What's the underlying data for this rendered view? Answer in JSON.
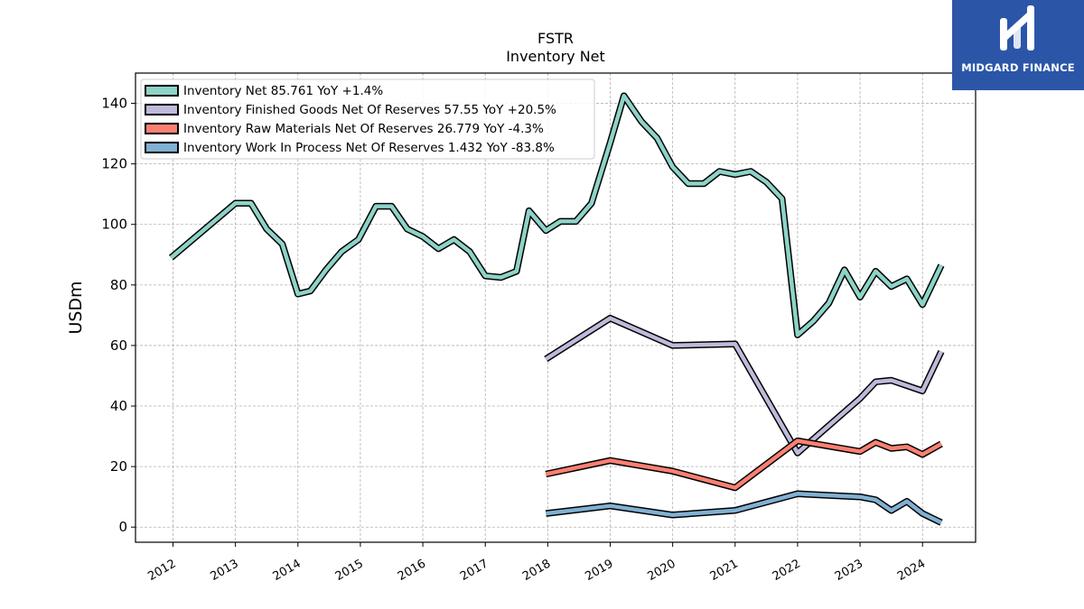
{
  "brand": {
    "name": "MIDGARD FINANCE",
    "bg_color": "#2b56a8"
  },
  "chart_data": {
    "type": "line",
    "title": "FSTR",
    "subtitle": "Inventory Net",
    "xlabel": "",
    "ylabel": "USDm",
    "ylim": [
      -5,
      150
    ],
    "xlim": [
      2011.4,
      2024.85
    ],
    "yticks": [
      0,
      20,
      40,
      60,
      80,
      100,
      120,
      140
    ],
    "xticks": [
      "2012",
      "2013",
      "2014",
      "2015",
      "2016",
      "2017",
      "2018",
      "2019",
      "2020",
      "2021",
      "2022",
      "2023",
      "2024"
    ],
    "grid": true,
    "legend_position": "top-left",
    "series": [
      {
        "name": "Inventory Net",
        "legend": "Inventory Net  85.761 YoY +1.4%",
        "color": "#8dd3c7",
        "x": [
          2011.97,
          2013.0,
          2013.25,
          2013.5,
          2013.75,
          2014.0,
          2014.2,
          2014.45,
          2014.7,
          2014.97,
          2015.25,
          2015.5,
          2015.75,
          2016.0,
          2016.25,
          2016.5,
          2016.75,
          2017.0,
          2017.25,
          2017.5,
          2017.7,
          2017.97,
          2018.2,
          2018.45,
          2018.7,
          2019.0,
          2019.22,
          2019.5,
          2019.75,
          2020.0,
          2020.25,
          2020.5,
          2020.75,
          2021.0,
          2021.25,
          2021.5,
          2021.75,
          2022.0,
          2022.25,
          2022.5,
          2022.75,
          2023.0,
          2023.25,
          2023.5,
          2023.75,
          2024.0,
          2024.3
        ],
        "values": [
          89,
          107,
          107,
          98.5,
          93.5,
          77,
          78,
          85,
          91,
          95,
          106,
          106,
          98.5,
          96,
          92,
          95,
          91,
          83,
          82.5,
          84.5,
          104.5,
          98,
          101,
          101,
          107,
          127,
          142.5,
          134,
          128.5,
          119,
          113.5,
          113.5,
          117.5,
          116.5,
          117.5,
          114,
          108.5,
          63.5,
          68,
          74,
          85,
          76,
          84.5,
          79.5,
          82,
          73.5,
          86.5
        ]
      },
      {
        "name": "Inventory Finished Goods Net Of Reserves",
        "legend": "Inventory Finished Goods Net Of Reserves  57.55 YoY +20.5%",
        "color": "#bebada",
        "x": [
          2017.97,
          2019.0,
          2020.0,
          2021.0,
          2022.0,
          2023.0,
          2023.25,
          2023.5,
          2024.0,
          2024.3
        ],
        "values": [
          55.5,
          69,
          60,
          60.5,
          24.5,
          42.5,
          48,
          48.5,
          45,
          58
        ]
      },
      {
        "name": "Inventory Raw Materials Net Of Reserves",
        "legend": "Inventory Raw Materials Net Of Reserves  26.779 YoY -4.3%",
        "color": "#fb8072",
        "x": [
          2017.97,
          2019.0,
          2020.0,
          2021.0,
          2022.0,
          2023.0,
          2023.25,
          2023.5,
          2023.75,
          2024.0,
          2024.3
        ],
        "values": [
          17.5,
          22,
          18.5,
          13,
          28.5,
          25,
          28,
          26,
          26.5,
          24,
          27.5
        ]
      },
      {
        "name": "Inventory Work In Process Net Of Reserves",
        "legend": "Inventory Work In Process Net Of Reserves  1.432 YoY -83.8%",
        "color": "#80b1d3",
        "x": [
          2017.97,
          2019.0,
          2020.0,
          2021.0,
          2022.0,
          2023.0,
          2023.25,
          2023.5,
          2023.75,
          2024.0,
          2024.3
        ],
        "values": [
          4.5,
          7,
          4,
          5.5,
          11,
          10,
          9,
          5.5,
          8.5,
          4.5,
          1.5
        ]
      }
    ]
  }
}
